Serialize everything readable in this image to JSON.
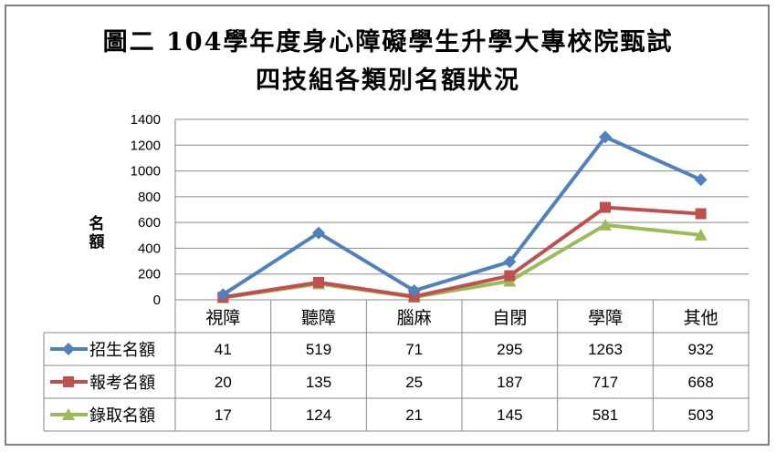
{
  "title": {
    "line1": "圖二 104學年度身心障礙學生升學大專校院甄試",
    "line2": "四技組各類別名額狀況"
  },
  "chart_data": {
    "type": "line",
    "ylabel": "名額",
    "ylim": [
      0,
      1400
    ],
    "yticks": [
      0,
      200,
      400,
      600,
      800,
      1000,
      1200,
      1400
    ],
    "grid": true,
    "legend": "data-table",
    "categories": [
      "視障",
      "聽障",
      "腦麻",
      "自閉",
      "學障",
      "其他"
    ],
    "series": [
      {
        "name": "招生名額",
        "color": "#4f81bd",
        "marker": "diamond",
        "values": [
          41,
          519,
          71,
          295,
          1263,
          932
        ]
      },
      {
        "name": "報考名額",
        "color": "#c0504d",
        "marker": "square",
        "values": [
          20,
          135,
          25,
          187,
          717,
          668
        ]
      },
      {
        "name": "錄取名額",
        "color": "#9bbb59",
        "marker": "triangle",
        "values": [
          17,
          124,
          21,
          145,
          581,
          503
        ]
      }
    ]
  }
}
